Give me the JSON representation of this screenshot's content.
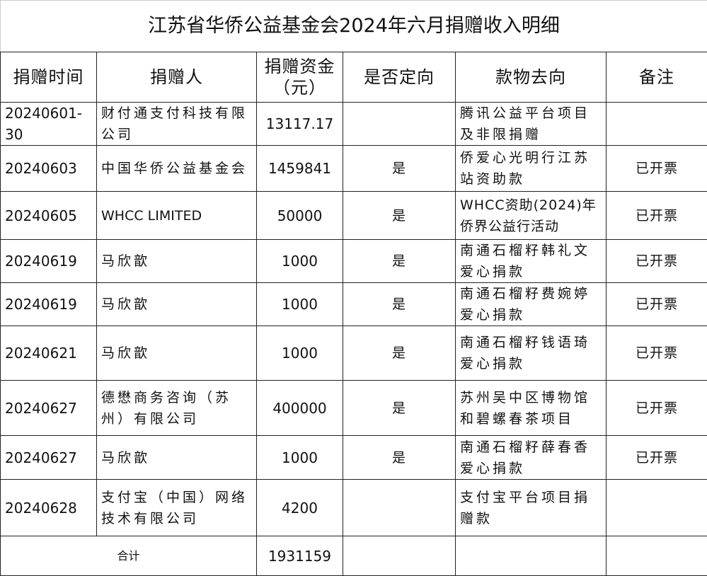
{
  "title": "江苏省华侨公益基金会2024年六月捐赠收入明细",
  "headers": [
    "捐赠时间",
    "捐赠人",
    "捐赠资金（元）",
    "是否定向",
    "款物去向",
    "备注"
  ],
  "rows": [
    {
      "date": "20240601-30",
      "donor": "财付通支付科技有限公司",
      "amount": "13117.17",
      "directed": "",
      "destination": "腾讯公益平台项目及非限捐赠",
      "note": ""
    },
    {
      "date": "20240603",
      "donor": "中国华侨公益基金会",
      "amount": "1459841",
      "directed": "是",
      "destination": "侨爱心光明行江苏站资助款",
      "note": "已开票"
    },
    {
      "date": "20240605",
      "donor": "WHCC LIMITED",
      "amount": "50000",
      "directed": "是",
      "destination": "WHCC资助(2024)年侨界公益行活动",
      "note": "已开票"
    },
    {
      "date": "20240619",
      "donor": "马欣歆",
      "amount": "1000",
      "directed": "是",
      "destination": "南通石榴籽韩礼文爱心捐款",
      "note": "已开票"
    },
    {
      "date": "20240619",
      "donor": "马欣歆",
      "amount": "1000",
      "directed": "是",
      "destination": "南通石榴籽费婉婷爱心捐款",
      "note": "已开票"
    },
    {
      "date": "20240621",
      "donor": "马欣歆",
      "amount": "1000",
      "directed": "是",
      "destination": "南通石榴籽钱语琦爱心捐款",
      "note": "已开票"
    },
    {
      "date": "20240627",
      "donor": "德懋商务咨询（苏州）有限公司",
      "amount": "400000",
      "directed": "是",
      "destination": "苏州吴中区博物馆和碧螺春茶项目",
      "note": "已开票"
    },
    {
      "date": "20240627",
      "donor": "马欣歆",
      "amount": "1000",
      "directed": "是",
      "destination": "南通石榴籽薛春香爱心捐款",
      "note": "已开票"
    },
    {
      "date": "20240628",
      "donor": "支付宝（中国）网络技术有限公司",
      "amount": "4200",
      "directed": "",
      "destination": "支付宝平台项目捐赠款",
      "note": ""
    }
  ],
  "total": {
    "label": "合计",
    "amount": "1931159"
  }
}
